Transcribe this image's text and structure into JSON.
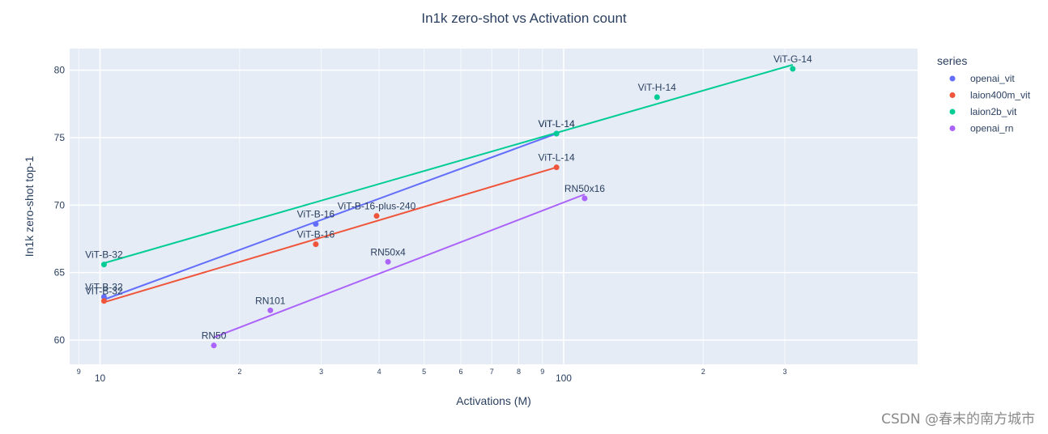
{
  "watermark": "CSDN @春末的南方城市",
  "chart_data": {
    "type": "scatter",
    "title": "In1k zero-shot vs Activation count",
    "xlabel": "Activations (M)",
    "ylabel": "In1k zero-shot top-1",
    "x_scale": "log",
    "xlim": [
      8.6,
      580
    ],
    "ylim": [
      58.2,
      81.6
    ],
    "x_major_ticks": [
      10,
      100
    ],
    "x_minor_ticks": [
      {
        "value": 9,
        "label": "9"
      },
      {
        "value": 20,
        "label": "2"
      },
      {
        "value": 30,
        "label": "3"
      },
      {
        "value": 40,
        "label": "4"
      },
      {
        "value": 50,
        "label": "5"
      },
      {
        "value": 60,
        "label": "6"
      },
      {
        "value": 70,
        "label": "7"
      },
      {
        "value": 80,
        "label": "8"
      },
      {
        "value": 90,
        "label": "9"
      },
      {
        "value": 200,
        "label": "2"
      },
      {
        "value": 300,
        "label": "3"
      }
    ],
    "y_ticks": [
      60,
      65,
      70,
      75,
      80
    ],
    "grid": true,
    "legend_title": "series",
    "legend_position": "right",
    "series": [
      {
        "name": "openai_vit",
        "color": "#636efa",
        "points": [
          {
            "x": 10.2,
            "y": 63.2,
            "label": "ViT-B-32"
          },
          {
            "x": 29.2,
            "y": 68.6,
            "label": "ViT-B-16"
          },
          {
            "x": 96.5,
            "y": 75.3,
            "label": "ViT-L-14"
          }
        ],
        "fit": [
          [
            10.2,
            63.0
          ],
          [
            96.5,
            75.3
          ]
        ]
      },
      {
        "name": "laion400m_vit",
        "color": "#ef553b",
        "points": [
          {
            "x": 10.2,
            "y": 62.9,
            "label": "ViT-B-32"
          },
          {
            "x": 29.2,
            "y": 67.1,
            "label": "ViT-B-16"
          },
          {
            "x": 39.5,
            "y": 69.2,
            "label": "ViT-B-16-plus-240"
          },
          {
            "x": 96.5,
            "y": 72.8,
            "label": "ViT-L-14"
          }
        ],
        "fit": [
          [
            10.2,
            62.8
          ],
          [
            96.5,
            72.8
          ]
        ]
      },
      {
        "name": "laion2b_vit",
        "color": "#00cc96",
        "points": [
          {
            "x": 10.2,
            "y": 65.6,
            "label": "ViT-B-32"
          },
          {
            "x": 96.5,
            "y": 75.3,
            "label": "ViT-L-14"
          },
          {
            "x": 159,
            "y": 78.0,
            "label": "ViT-H-14"
          },
          {
            "x": 312,
            "y": 80.1,
            "label": "ViT-G-14"
          }
        ],
        "fit": [
          [
            10.2,
            65.7
          ],
          [
            312,
            80.4
          ]
        ]
      },
      {
        "name": "openai_rn",
        "color": "#ab63fa",
        "points": [
          {
            "x": 17.6,
            "y": 59.6,
            "label": "RN50"
          },
          {
            "x": 23.3,
            "y": 62.2,
            "label": "RN101"
          },
          {
            "x": 41.8,
            "y": 65.8,
            "label": "RN50x4"
          },
          {
            "x": 111,
            "y": 70.5,
            "label": "RN50x16"
          }
        ],
        "fit": [
          [
            17.6,
            60.2
          ],
          [
            111,
            70.8
          ]
        ]
      }
    ]
  }
}
